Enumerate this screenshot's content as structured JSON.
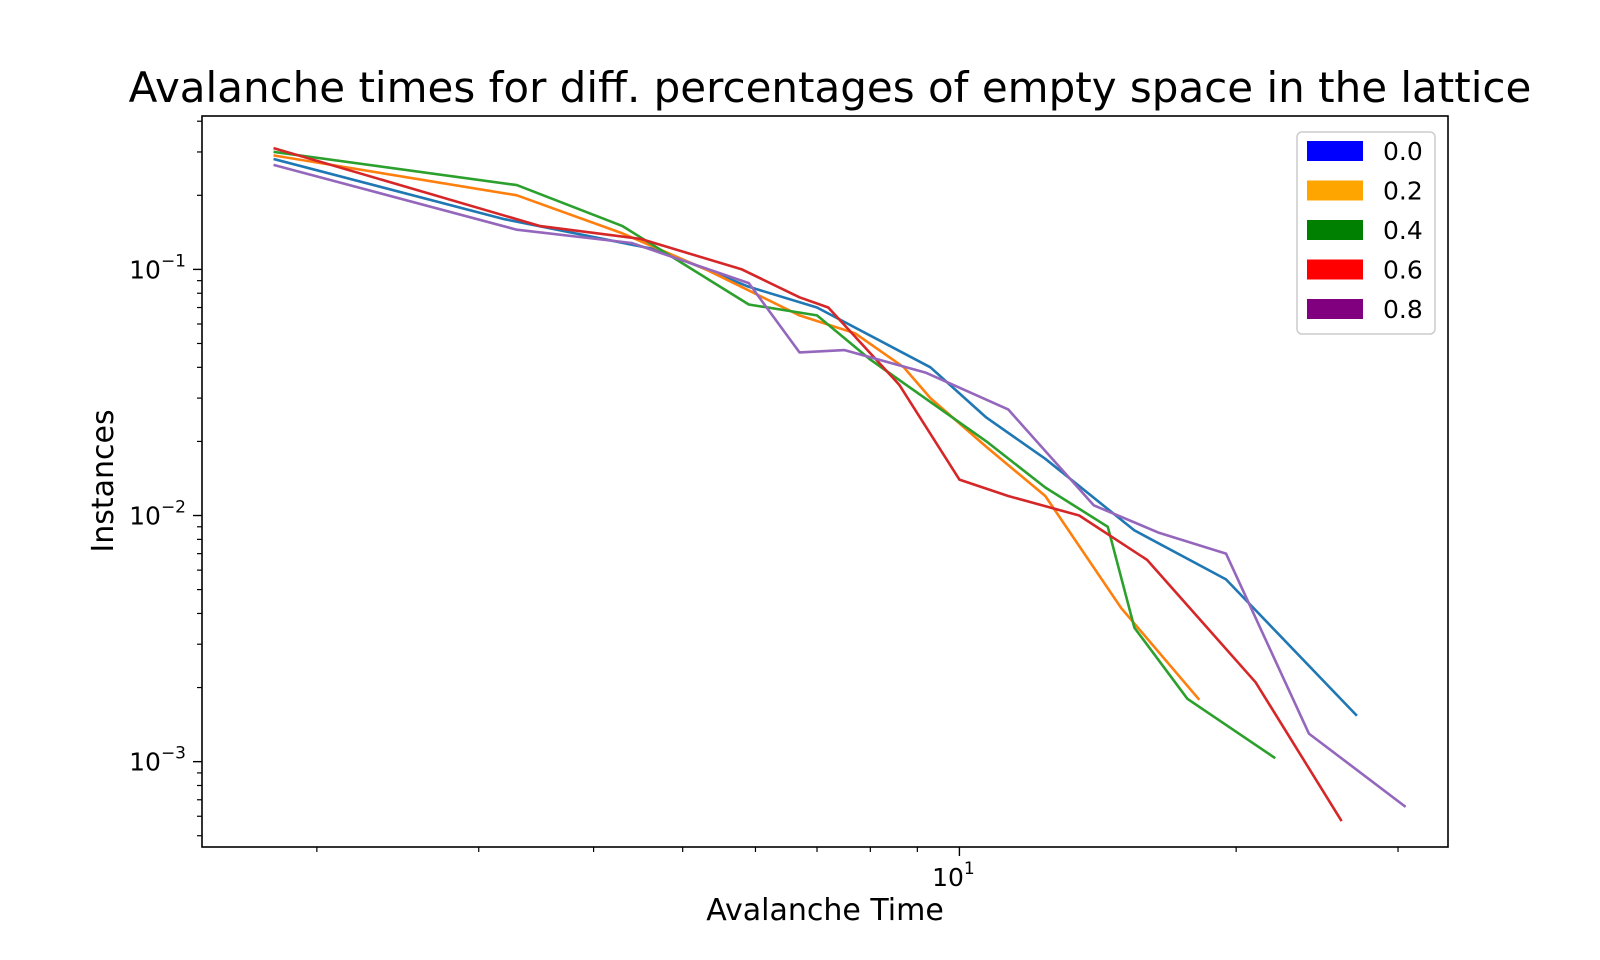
{
  "chart_data": {
    "type": "line",
    "title": "Avalanche times for diff. percentages of empty space in the lattice",
    "xlabel": "Avalanche Time",
    "ylabel": "Instances",
    "xscale": "log",
    "yscale": "log",
    "xlim": [
      1.5,
      34
    ],
    "ylim": [
      0.00045,
      0.42
    ],
    "grid": false,
    "legend_placement": "top-right",
    "x_major_ticks": [
      {
        "value": 10,
        "base": "10",
        "exp": "1"
      }
    ],
    "x_minor_ticks": [
      2,
      3,
      4,
      5,
      6,
      7,
      8,
      9,
      20,
      30
    ],
    "y_major_ticks": [
      {
        "value": 0.1,
        "base": "10",
        "exp": "−1"
      },
      {
        "value": 0.01,
        "base": "10",
        "exp": "−2"
      },
      {
        "value": 0.001,
        "base": "10",
        "exp": "−3"
      }
    ],
    "legend": [
      {
        "label": "0.0",
        "color": "#0000ff"
      },
      {
        "label": "0.2",
        "color": "#ffa500"
      },
      {
        "label": "0.4",
        "color": "#008000"
      },
      {
        "label": "0.6",
        "color": "#ff0000"
      },
      {
        "label": "0.8",
        "color": "#800080"
      }
    ],
    "series": [
      {
        "color": "#1f77b4",
        "x": [
          1.8,
          3.2,
          4.7,
          5.9,
          7.0,
          9.3,
          10.7,
          12.4,
          15.5,
          19.5,
          27.0
        ],
        "y": [
          0.28,
          0.16,
          0.12,
          0.085,
          0.07,
          0.04,
          0.025,
          0.017,
          0.0087,
          0.0055,
          0.00155
        ]
      },
      {
        "color": "#ff7f0e",
        "x": [
          1.8,
          3.3,
          4.3,
          5.3,
          6.7,
          7.7,
          8.7,
          9.3,
          10.7,
          12.4,
          15.0,
          18.2
        ],
        "y": [
          0.29,
          0.2,
          0.14,
          0.1,
          0.065,
          0.055,
          0.04,
          0.03,
          0.019,
          0.012,
          0.0042,
          0.0018
        ]
      },
      {
        "color": "#2ca02c",
        "x": [
          1.8,
          3.3,
          4.3,
          5.9,
          7.0,
          8.0,
          10.7,
          12.4,
          14.5,
          15.5,
          17.7,
          22.0
        ],
        "y": [
          0.3,
          0.22,
          0.15,
          0.072,
          0.065,
          0.043,
          0.02,
          0.013,
          0.009,
          0.0035,
          0.0018,
          0.00104
        ]
      },
      {
        "color": "#d62728",
        "x": [
          1.8,
          3.5,
          4.5,
          5.8,
          6.7,
          7.2,
          8.6,
          10.0,
          11.3,
          13.5,
          16.0,
          21.0,
          26.0
        ],
        "y": [
          0.31,
          0.15,
          0.133,
          0.1,
          0.077,
          0.07,
          0.034,
          0.014,
          0.012,
          0.01,
          0.0066,
          0.0021,
          0.00058
        ]
      },
      {
        "color": "#9467bd",
        "x": [
          1.8,
          3.3,
          4.4,
          5.9,
          6.7,
          7.5,
          9.2,
          11.3,
          14.0,
          16.5,
          19.5,
          24.0,
          30.5
        ],
        "y": [
          0.265,
          0.145,
          0.128,
          0.088,
          0.046,
          0.047,
          0.038,
          0.027,
          0.011,
          0.0085,
          0.007,
          0.0013,
          0.00066
        ]
      }
    ]
  }
}
